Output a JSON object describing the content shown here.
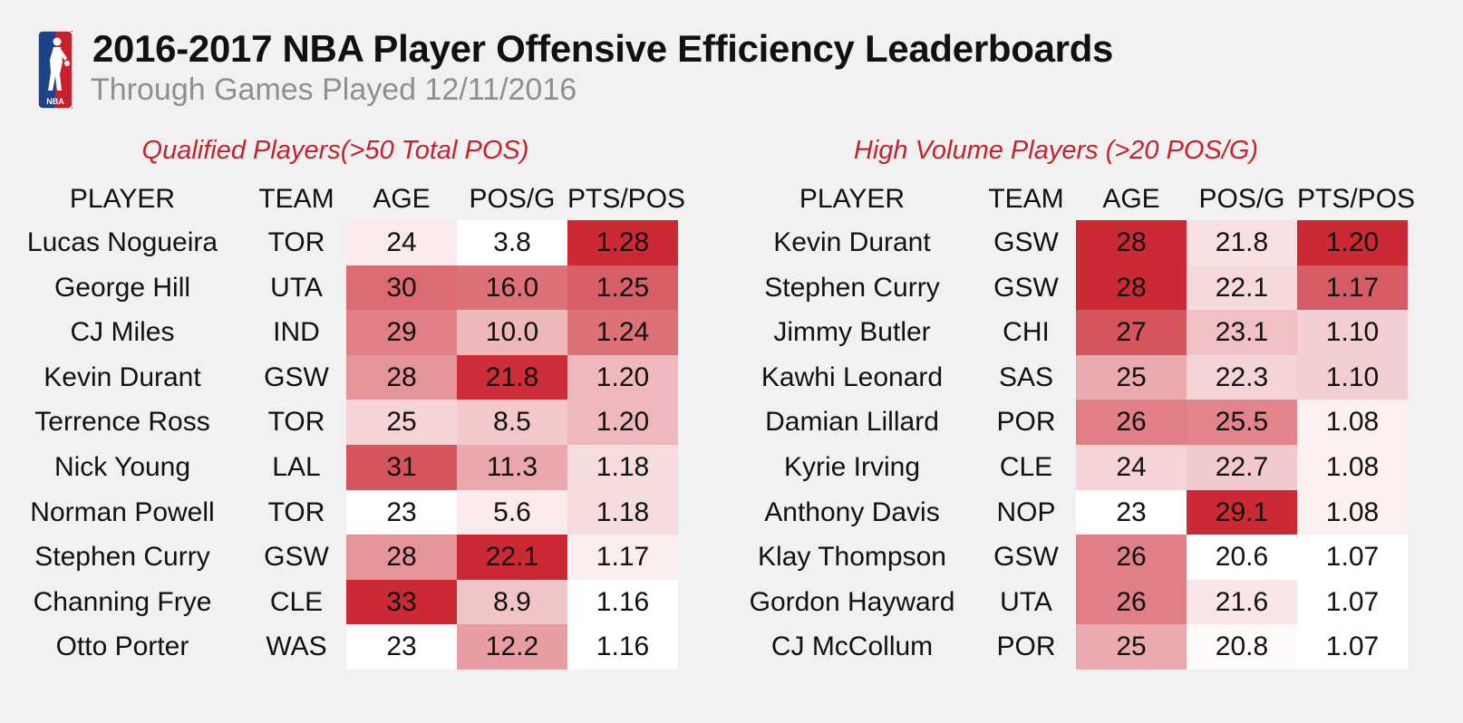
{
  "title": "2016-2017 NBA Player Offensive Efficiency Leaderboards",
  "subtitle": "Through Games Played 12/11/2016",
  "logo_text": "NBA",
  "colors": {
    "accent": "#c8202c",
    "heat_low": "#ffffff",
    "heat_high": "#cb2a35"
  },
  "chart_data": [
    {
      "type": "table",
      "title": "Qualified Players(>50 Total POS)",
      "columns": [
        "PLAYER",
        "TEAM",
        "AGE",
        "POS/G",
        "PTS/POS"
      ],
      "heatmap_columns": [
        "AGE",
        "POS/G",
        "PTS/POS"
      ],
      "rows": [
        {
          "player": "Lucas Nogueira",
          "team": "TOR",
          "age": "24",
          "pos_g": "3.8",
          "pts_pos": "1.28"
        },
        {
          "player": "George Hill",
          "team": "UTA",
          "age": "30",
          "pos_g": "16.0",
          "pts_pos": "1.25"
        },
        {
          "player": "CJ Miles",
          "team": "IND",
          "age": "29",
          "pos_g": "10.0",
          "pts_pos": "1.24"
        },
        {
          "player": "Kevin Durant",
          "team": "GSW",
          "age": "28",
          "pos_g": "21.8",
          "pts_pos": "1.20"
        },
        {
          "player": "Terrence Ross",
          "team": "TOR",
          "age": "25",
          "pos_g": "8.5",
          "pts_pos": "1.20"
        },
        {
          "player": "Nick Young",
          "team": "LAL",
          "age": "31",
          "pos_g": "11.3",
          "pts_pos": "1.18"
        },
        {
          "player": "Norman Powell",
          "team": "TOR",
          "age": "23",
          "pos_g": "5.6",
          "pts_pos": "1.18"
        },
        {
          "player": "Stephen Curry",
          "team": "GSW",
          "age": "28",
          "pos_g": "22.1",
          "pts_pos": "1.17"
        },
        {
          "player": "Channing Frye",
          "team": "CLE",
          "age": "33",
          "pos_g": "8.9",
          "pts_pos": "1.16"
        },
        {
          "player": "Otto Porter",
          "team": "WAS",
          "age": "23",
          "pos_g": "12.2",
          "pts_pos": "1.16"
        }
      ]
    },
    {
      "type": "table",
      "title": "High Volume Players (>20 POS/G)",
      "columns": [
        "PLAYER",
        "TEAM",
        "AGE",
        "POS/G",
        "PTS/POS"
      ],
      "heatmap_columns": [
        "AGE",
        "POS/G",
        "PTS/POS"
      ],
      "rows": [
        {
          "player": "Kevin Durant",
          "team": "GSW",
          "age": "28",
          "pos_g": "21.8",
          "pts_pos": "1.20"
        },
        {
          "player": "Stephen Curry",
          "team": "GSW",
          "age": "28",
          "pos_g": "22.1",
          "pts_pos": "1.17"
        },
        {
          "player": "Jimmy Butler",
          "team": "CHI",
          "age": "27",
          "pos_g": "23.1",
          "pts_pos": "1.10"
        },
        {
          "player": "Kawhi Leonard",
          "team": "SAS",
          "age": "25",
          "pos_g": "22.3",
          "pts_pos": "1.10"
        },
        {
          "player": "Damian Lillard",
          "team": "POR",
          "age": "26",
          "pos_g": "25.5",
          "pts_pos": "1.08"
        },
        {
          "player": "Kyrie Irving",
          "team": "CLE",
          "age": "24",
          "pos_g": "22.7",
          "pts_pos": "1.08"
        },
        {
          "player": "Anthony Davis",
          "team": "NOP",
          "age": "23",
          "pos_g": "29.1",
          "pts_pos": "1.08"
        },
        {
          "player": "Klay Thompson",
          "team": "GSW",
          "age": "26",
          "pos_g": "20.6",
          "pts_pos": "1.07"
        },
        {
          "player": "Gordon Hayward",
          "team": "UTA",
          "age": "26",
          "pos_g": "21.6",
          "pts_pos": "1.07"
        },
        {
          "player": "CJ McCollum",
          "team": "POR",
          "age": "25",
          "pos_g": "20.8",
          "pts_pos": "1.07"
        }
      ]
    }
  ]
}
